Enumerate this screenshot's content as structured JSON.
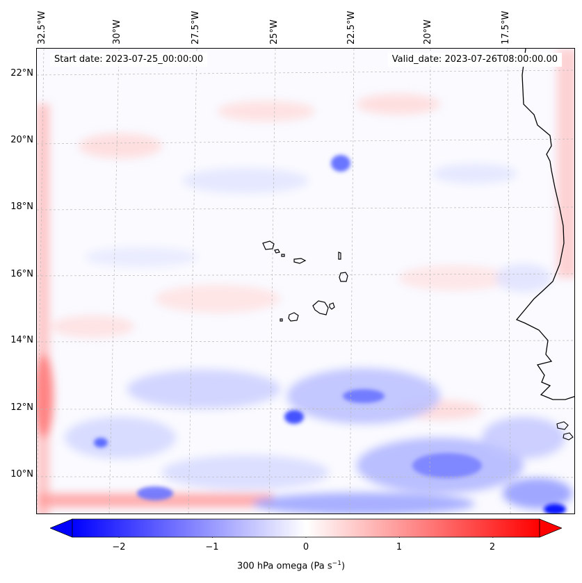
{
  "map": {
    "region": "Eastern tropical Atlantic, Cape Verde islands and West African coast",
    "start_date": "Start date: 2023-07-25_00:00:00",
    "valid_date": "Valid_date: 2023-07-26T08:00:00.00",
    "lon_labels": [
      "32.5°W",
      "30°W",
      "27.5°W",
      "25°W",
      "22.5°W",
      "20°W",
      "17.5°W"
    ],
    "lat_labels": [
      "22°N",
      "20°N",
      "18°N",
      "16°N",
      "14°N",
      "12°N",
      "10°N"
    ],
    "features": [
      "Cape Verde islands",
      "West African coastline"
    ],
    "field": "300 hPa omega",
    "colors": {
      "negative": "#0000ff",
      "zero": "#ffffff",
      "positive": "#ff0000",
      "coast": "#000000"
    }
  },
  "colorbar": {
    "ticks": [
      "−2",
      "−1",
      "0",
      "1",
      "2"
    ],
    "tick_values": [
      -2,
      -1,
      0,
      1,
      2
    ],
    "range": [
      -2.5,
      2.5
    ],
    "label": "300 hPa omega (Pa s",
    "label_sup": "−1",
    "label_close": ")"
  }
}
